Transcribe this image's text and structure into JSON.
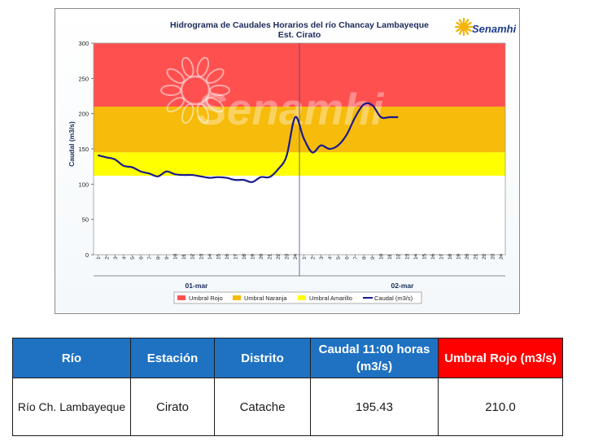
{
  "chart_data": {
    "type": "line",
    "title": "Hidrograma de Caudales Horarios del río Chancay Lambayeque",
    "subtitle": "Est. Cirato",
    "brand": "Senamhi",
    "watermark": "Senamhi",
    "ylabel": "Caudal  (m3/s)",
    "ylim": [
      0,
      300
    ],
    "yticks": [
      0,
      50,
      100,
      150,
      200,
      250,
      300
    ],
    "x_hour_labels": [
      "1",
      "2",
      "3",
      "4",
      "5",
      "6",
      "7",
      "8",
      "9",
      "10",
      "11",
      "12",
      "13",
      "14",
      "15",
      "16",
      "17",
      "18",
      "19",
      "20",
      "21",
      "22",
      "23",
      "24",
      "1",
      "2",
      "3",
      "4",
      "5",
      "6",
      "7",
      "8",
      "9",
      "10",
      "11",
      "12",
      "13",
      "14",
      "15",
      "16",
      "17",
      "18",
      "19",
      "20",
      "21",
      "22",
      "23",
      "24"
    ],
    "date_labels": [
      "01-mar",
      "02-mar"
    ],
    "thresholds": [
      {
        "name": "Umbral Rojo",
        "from": 210,
        "to": 300,
        "color": "#ff5050"
      },
      {
        "name": "Umbral Naranja",
        "from": 145,
        "to": 210,
        "color": "#f6bb0b"
      },
      {
        "name": "Umbral Amarillo",
        "from": 112,
        "to": 145,
        "color": "#ffff00"
      }
    ],
    "series": [
      {
        "name": "Caudal (m3/s)",
        "color": "#1a1a8c",
        "x": [
          1,
          2,
          3,
          4,
          5,
          6,
          7,
          8,
          9,
          10,
          11,
          12,
          13,
          14,
          15,
          16,
          17,
          18,
          19,
          20,
          21,
          22,
          23,
          24,
          25,
          26,
          27,
          28,
          29,
          30,
          31,
          32,
          33,
          34,
          35,
          36
        ],
        "values": [
          141,
          138,
          135,
          126,
          124,
          118,
          115,
          111,
          118,
          114,
          113,
          113,
          111,
          109,
          110,
          109,
          106,
          106,
          103,
          110,
          110,
          121,
          140,
          195,
          165,
          145,
          155,
          150,
          155,
          170,
          195,
          213,
          212,
          195,
          195,
          195
        ]
      }
    ],
    "legend": [
      "Umbral Rojo",
      "Umbral Naranja",
      "Umbral Amarillo",
      "Caudal (m3/s)"
    ],
    "legend_position": "bottom"
  },
  "table": {
    "headers": [
      "Río",
      "Estación",
      "Distrito",
      "Caudal 11:00 horas (m3/s)",
      "Umbral Rojo (m3/s)"
    ],
    "row": [
      "Río Ch. Lambayeque",
      "Cirato",
      "Catache",
      "195.43",
      "210.0"
    ]
  },
  "colors": {
    "header_blue": "#1f72c2",
    "header_red": "#ff0000",
    "line": "#1a1a8c"
  }
}
